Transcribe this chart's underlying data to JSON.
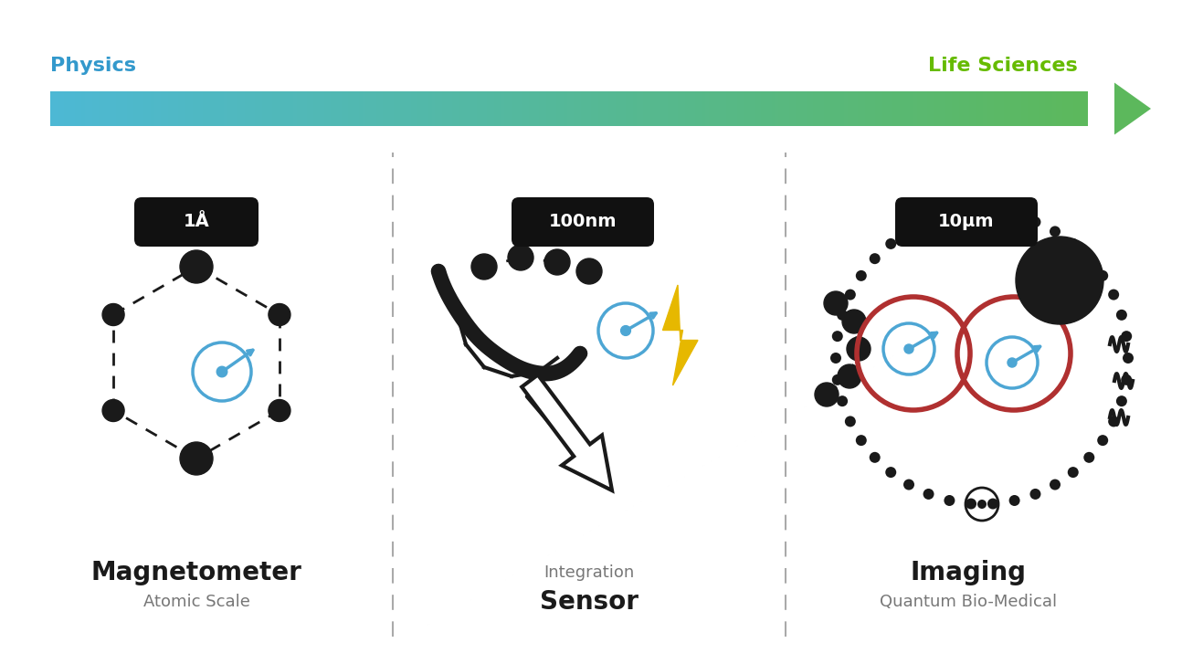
{
  "bg_color": "#ffffff",
  "title_left_sub": "Atomic Scale",
  "title_left_main": "Magnetometer",
  "title_mid_main": "Sensor",
  "title_mid_sub": "Integration",
  "title_right_sub": "Quantum Bio-Medical",
  "title_right_main": "Imaging",
  "label_left": "1Å",
  "label_mid": "100nm",
  "label_right": "10μm",
  "physics_label": "Physics",
  "lifesci_label": "Life Sciences",
  "arrow_color_left": "#4db8d4",
  "arrow_color_right": "#5cb85c",
  "physics_color": "#3399cc",
  "lifesci_color": "#66bb00",
  "dark_node": "#1a1a1a",
  "blue_sensor": "#4da6d4",
  "red_loop": "#b03030",
  "gold_lightning": "#e6b800",
  "dashed_line_color": "#222222",
  "label_bg": "#111111",
  "label_text": "#ffffff"
}
